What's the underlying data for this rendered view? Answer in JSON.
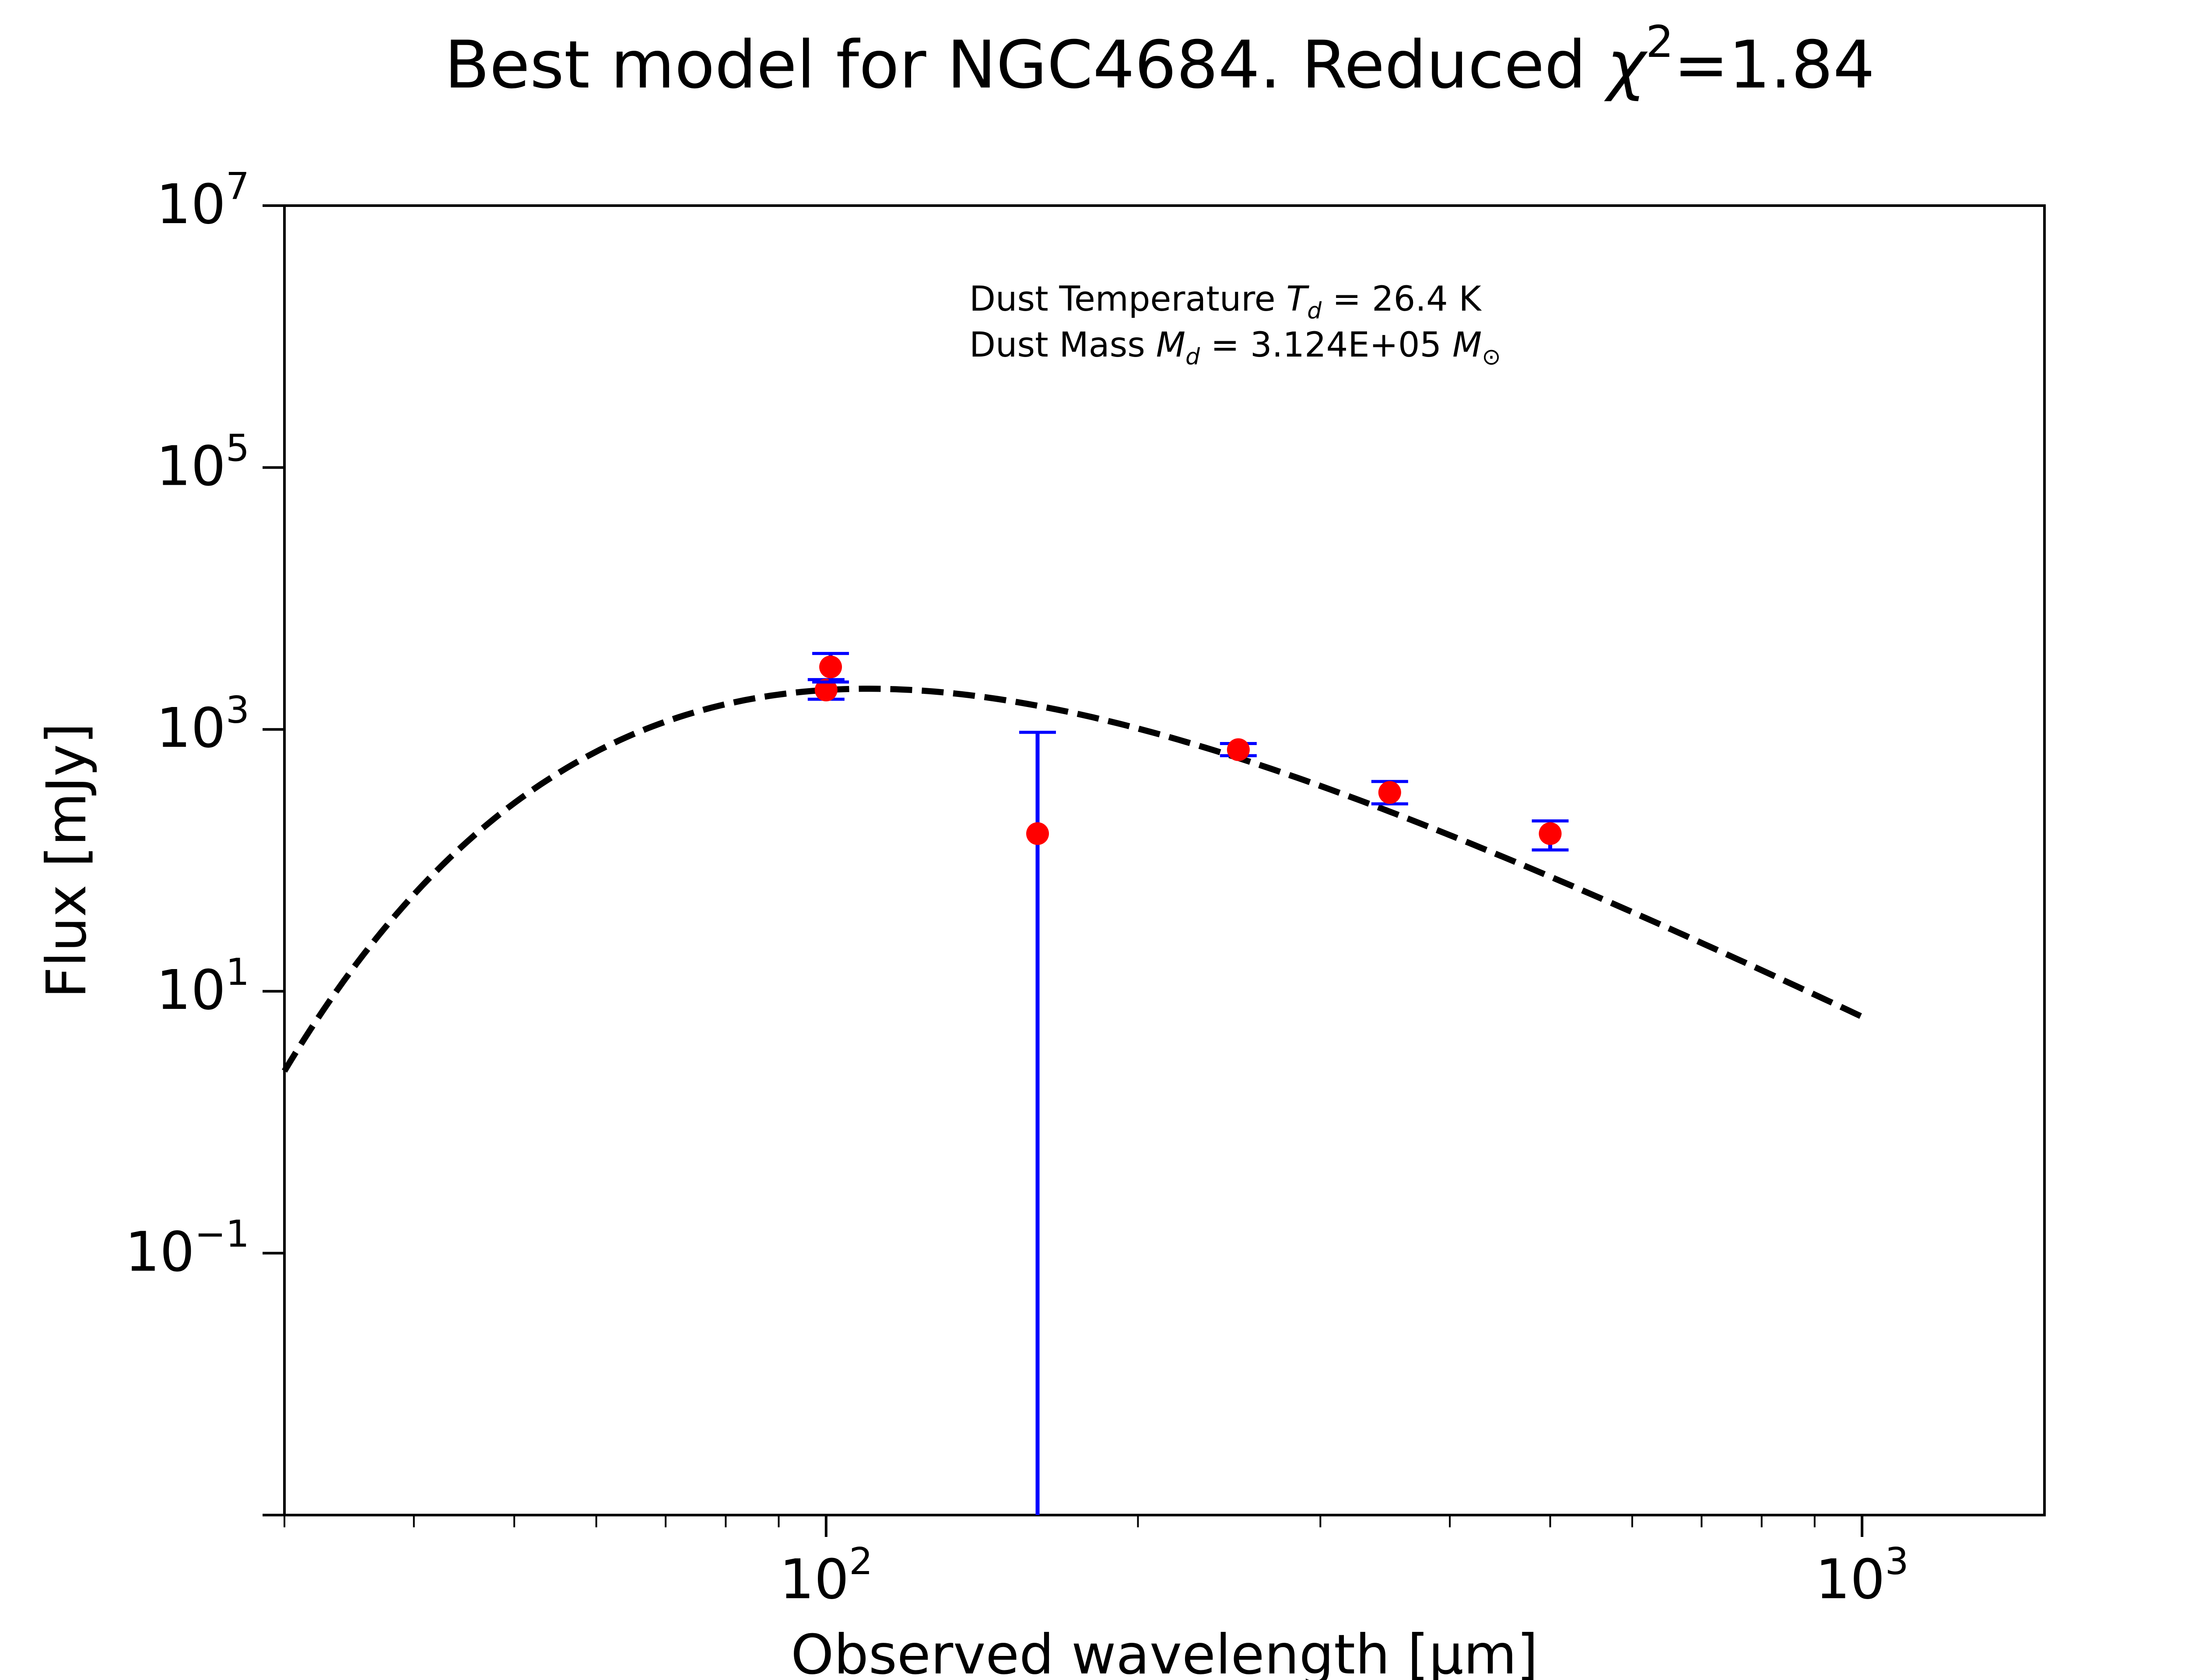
{
  "chart_data": {
    "type": "scatter",
    "title": "Best model for NGC4684. Reduced χ²=1.84",
    "title_main": "Best model for NGC4684. Reduced ",
    "title_symbol": "χ",
    "title_exp": "2",
    "title_value": "=1.84",
    "xlabel": "Observed wavelength [μm]",
    "ylabel": "Flux [mJy]",
    "xscale": "log",
    "yscale": "log",
    "xlim": [
      30,
      1500
    ],
    "ylim": [
      0.001,
      10000000
    ],
    "x_ticks": [
      {
        "value": 100,
        "base": "10",
        "exp": "2"
      },
      {
        "value": 1000,
        "base": "10",
        "exp": "3"
      }
    ],
    "y_ticks": [
      {
        "value": 0.1,
        "base": "10",
        "exp": "−1"
      },
      {
        "value": 10,
        "base": "10",
        "exp": "1"
      },
      {
        "value": 1000,
        "base": "10",
        "exp": "3"
      },
      {
        "value": 100000,
        "base": "10",
        "exp": "5"
      },
      {
        "value": 10000000,
        "base": "10",
        "exp": "7"
      }
    ],
    "grid": false,
    "annotations": {
      "temperature_prefix": "Dust Temperature ",
      "temperature_symbol": "T",
      "temperature_sub": "d",
      "temperature_value": " = 26.4 K",
      "mass_prefix": "Dust Mass ",
      "mass_symbol": "M",
      "mass_sub": "d",
      "mass_value": " = 3.124E+05 ",
      "mass_unit_symbol": "M",
      "mass_unit_sub": "⊙"
    },
    "series": [
      {
        "type": "line",
        "style": "dashed",
        "color": "#000000",
        "model": "modified_blackbody",
        "temperature_K": 26.4,
        "x_range": [
          30,
          1000
        ]
      },
      {
        "type": "errorbar",
        "marker_color": "#ff0000",
        "error_color": "#0000ff",
        "points": [
          {
            "x": 100,
            "y": 2000,
            "yerr_low": 1700,
            "yerr_high": 2400
          },
          {
            "x": 101,
            "y": 3000,
            "yerr_low": 2300,
            "yerr_high": 3800
          },
          {
            "x": 160,
            "y": 160,
            "yerr_low": 0.001,
            "yerr_high": 950
          },
          {
            "x": 250,
            "y": 700,
            "yerr_low": 630,
            "yerr_high": 780
          },
          {
            "x": 350,
            "y": 330,
            "yerr_low": 270,
            "yerr_high": 400
          },
          {
            "x": 500,
            "y": 160,
            "yerr_low": 120,
            "yerr_high": 200
          }
        ]
      }
    ]
  }
}
